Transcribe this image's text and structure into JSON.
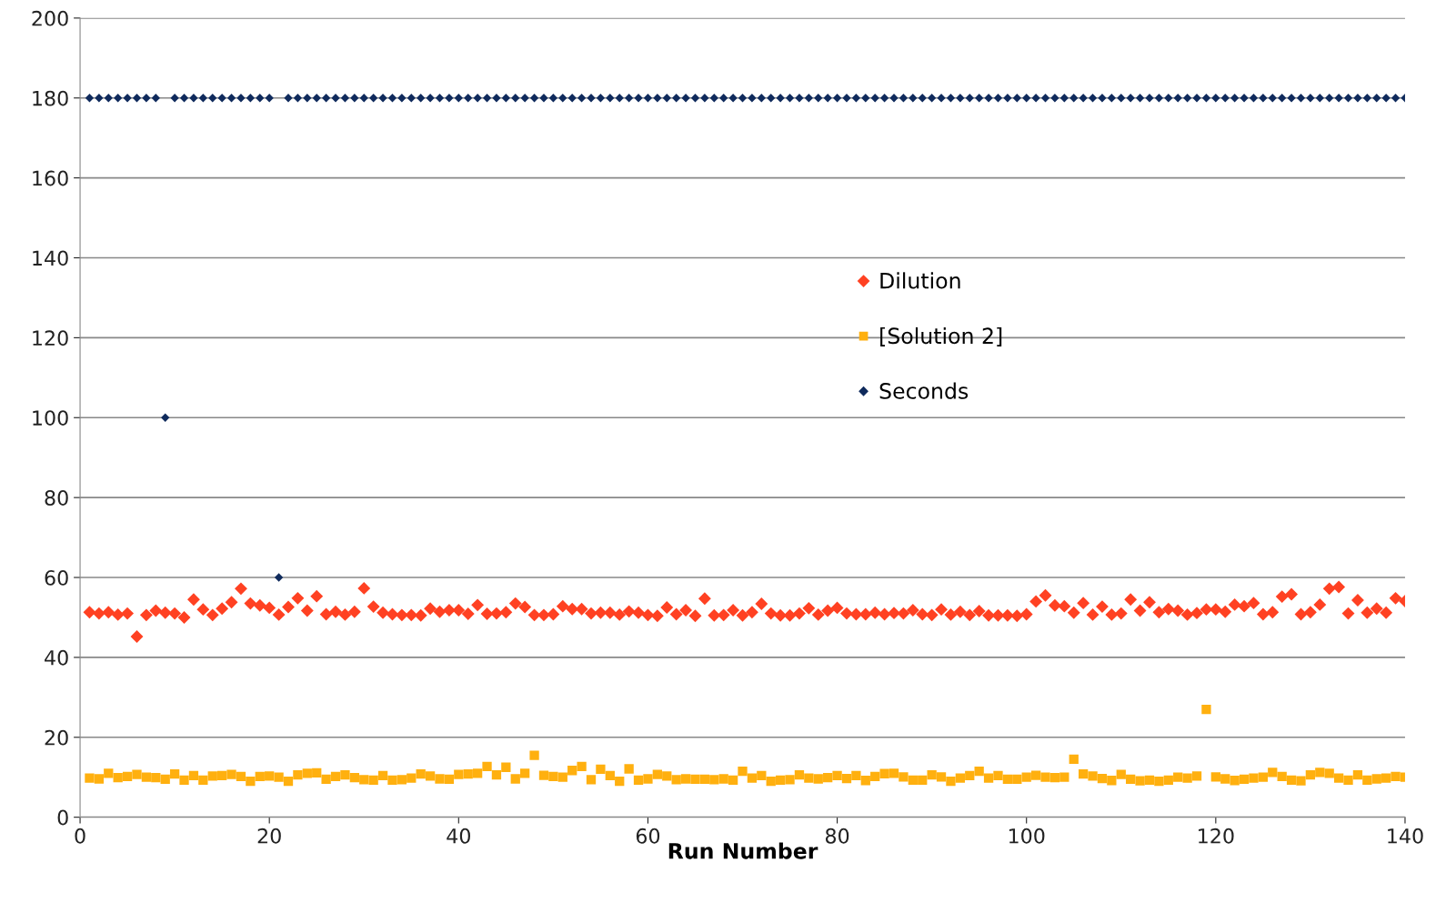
{
  "chart_data": {
    "type": "scatter",
    "xlabel": "Run Number",
    "x": [
      1,
      2,
      3,
      4,
      5,
      6,
      7,
      8,
      9,
      10,
      11,
      12,
      13,
      14,
      15,
      16,
      17,
      18,
      19,
      20,
      21,
      22,
      23,
      24,
      25,
      26,
      27,
      28,
      29,
      30,
      31,
      32,
      33,
      34,
      35,
      36,
      37,
      38,
      39,
      40,
      41,
      42,
      43,
      44,
      45,
      46,
      47,
      48,
      49,
      50,
      51,
      52,
      53,
      54,
      55,
      56,
      57,
      58,
      59,
      60,
      61,
      62,
      63,
      64,
      65,
      66,
      67,
      68,
      69,
      70,
      71,
      72,
      73,
      74,
      75,
      76,
      77,
      78,
      79,
      80,
      81,
      82,
      83,
      84,
      85,
      86,
      87,
      88,
      89,
      90,
      91,
      92,
      93,
      94,
      95,
      96,
      97,
      98,
      99,
      100,
      101,
      102,
      103,
      104,
      105,
      106,
      107,
      108,
      109,
      110,
      111,
      112,
      113,
      114,
      115,
      116,
      117,
      118,
      119,
      120,
      121,
      122,
      123,
      124,
      125,
      126,
      127,
      128,
      129,
      130,
      131,
      132,
      133,
      134,
      135,
      136,
      137,
      138,
      139,
      140
    ],
    "xlim": [
      0,
      140
    ],
    "xticks": [
      0,
      20,
      40,
      60,
      80,
      100,
      120,
      140
    ],
    "ylim": [
      0,
      200
    ],
    "yticks": [
      0,
      20,
      40,
      60,
      80,
      100,
      120,
      140,
      160,
      180,
      200
    ],
    "grid": "y",
    "legend": "center",
    "series": [
      {
        "name": "Dilution",
        "color": "#ff4122",
        "marker": "diamond",
        "values": [
          51.3,
          51,
          51.3,
          50.7,
          51,
          45.2,
          50.6,
          51.7,
          51.2,
          51,
          50,
          54.5,
          52,
          50.6,
          52.2,
          53.8,
          57.2,
          53.5,
          53,
          52.4,
          50.7,
          52.6,
          54.8,
          51.7,
          55.3,
          50.8,
          51.4,
          50.7,
          51.4,
          57.3,
          52.7,
          51.2,
          50.8,
          50.6,
          50.6,
          50.5,
          52.2,
          51.4,
          51.8,
          51.8,
          50.9,
          53.1,
          50.9,
          51,
          51.3,
          53.5,
          52.6,
          50.6,
          50.6,
          50.8,
          52.8,
          52.1,
          52.1,
          51,
          51.2,
          51.2,
          50.7,
          51.5,
          51.2,
          50.6,
          50.4,
          52.5,
          50.8,
          51.8,
          50.4,
          54.7,
          50.5,
          50.6,
          51.8,
          50.5,
          51.3,
          53.4,
          51,
          50.5,
          50.5,
          51,
          52.3,
          50.7,
          51.7,
          52.4,
          51,
          50.8,
          50.8,
          51.2,
          50.8,
          51.1,
          51,
          51.8,
          50.8,
          50.6,
          52,
          50.7,
          51.4,
          50.6,
          51.6,
          50.5,
          50.5,
          50.5,
          50.4,
          50.8,
          54,
          55.5,
          53,
          52.8,
          51.2,
          53.6,
          50.7,
          52.7,
          50.7,
          51,
          54.5,
          51.7,
          53.8,
          51.3,
          52.1,
          51.7,
          50.7,
          51.1,
          52,
          52,
          51.4,
          53.2,
          52.8,
          53.6,
          50.8,
          51.3,
          55.2,
          55.8,
          50.8,
          51.3,
          53.2,
          57.2,
          57.6,
          51,
          54.3,
          51.2,
          52.2,
          51.2,
          54.8,
          54.1
        ]
      },
      {
        "name": "[Solution 2]",
        "color": "#ffb00f",
        "marker": "square",
        "values": [
          9.8,
          9.6,
          11,
          9.9,
          10.2,
          10.7,
          10,
          9.9,
          9.5,
          10.8,
          9.3,
          10.4,
          9.3,
          10.3,
          10.4,
          10.7,
          10.2,
          9,
          10.2,
          10.3,
          10,
          9,
          10.6,
          11,
          11.1,
          9.5,
          10.2,
          10.6,
          9.9,
          9.4,
          9.3,
          10.4,
          9.3,
          9.4,
          9.8,
          10.8,
          10.3,
          9.6,
          9.5,
          10.7,
          10.8,
          11,
          12.7,
          10.6,
          12.5,
          9.6,
          11,
          15.5,
          10.5,
          10.2,
          10,
          11.7,
          12.7,
          9.4,
          12,
          10.4,
          9,
          12.1,
          9.3,
          9.6,
          10.7,
          10.3,
          9.4,
          9.6,
          9.5,
          9.5,
          9.4,
          9.6,
          9.3,
          11.5,
          9.8,
          10.4,
          9,
          9.3,
          9.4,
          10.6,
          9.8,
          9.6,
          9.9,
          10.4,
          9.7,
          10.4,
          9.2,
          10.2,
          10.9,
          11,
          10.1,
          9.3,
          9.3,
          10.6,
          10.1,
          9,
          9.8,
          10.4,
          11.5,
          9.8,
          10.4,
          9.5,
          9.5,
          10,
          10.5,
          10,
          9.9,
          10,
          14.5,
          10.8,
          10.3,
          9.7,
          9.2,
          10.7,
          9.5,
          9.1,
          9.3,
          9,
          9.3,
          10,
          9.8,
          10.3,
          27,
          10.1,
          9.6,
          9.2,
          9.5,
          9.8,
          10,
          11.2,
          10.2,
          9.3,
          9.1,
          10.6,
          11.2,
          11,
          9.8,
          9.3,
          10.6,
          9.3,
          9.6,
          9.8,
          10.2,
          10
        ]
      },
      {
        "name": "Seconds",
        "color": "#0f2a5c",
        "marker": "diamond",
        "values": [
          180,
          180,
          180,
          180,
          180,
          180,
          180,
          180,
          100,
          180,
          180,
          180,
          180,
          180,
          180,
          180,
          180,
          180,
          180,
          180,
          60,
          180,
          180,
          180,
          180,
          180,
          180,
          180,
          180,
          180,
          180,
          180,
          180,
          180,
          180,
          180,
          180,
          180,
          180,
          180,
          180,
          180,
          180,
          180,
          180,
          180,
          180,
          180,
          180,
          180,
          180,
          180,
          180,
          180,
          180,
          180,
          180,
          180,
          180,
          180,
          180,
          180,
          180,
          180,
          180,
          180,
          180,
          180,
          180,
          180,
          180,
          180,
          180,
          180,
          180,
          180,
          180,
          180,
          180,
          180,
          180,
          180,
          180,
          180,
          180,
          180,
          180,
          180,
          180,
          180,
          180,
          180,
          180,
          180,
          180,
          180,
          180,
          180,
          180,
          180,
          180,
          180,
          180,
          180,
          180,
          180,
          180,
          180,
          180,
          180,
          180,
          180,
          180,
          180,
          180,
          180,
          180,
          180,
          180,
          180,
          180,
          180,
          180,
          180,
          180,
          180,
          180,
          180,
          180,
          180,
          180,
          180,
          180,
          180,
          180,
          180,
          180,
          180,
          180,
          180
        ]
      }
    ]
  }
}
